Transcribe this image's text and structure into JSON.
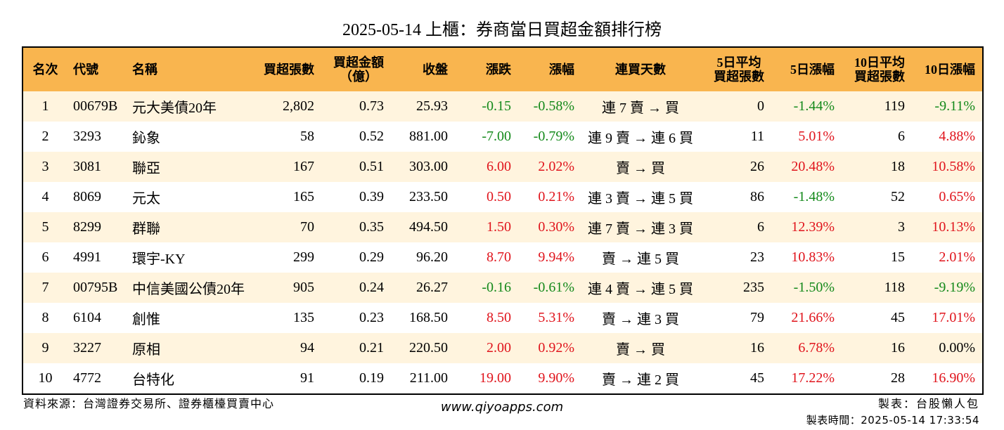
{
  "title": "2025-05-14 上櫃：券商當日買超金額排行榜",
  "colors": {
    "header_bg": "#F9B54F",
    "row_alt_bg": "#FFF4DE",
    "border": "#000000",
    "up": "#E0141C",
    "down": "#13891A"
  },
  "columns": [
    {
      "key": "rank",
      "label": [
        "名次"
      ]
    },
    {
      "key": "code",
      "label": [
        "代號"
      ]
    },
    {
      "key": "name",
      "label": [
        "名稱"
      ]
    },
    {
      "key": "net_buy_lots",
      "label": [
        "買超張數"
      ]
    },
    {
      "key": "net_buy_amount",
      "label": [
        "買超金額",
        "（億）"
      ]
    },
    {
      "key": "close",
      "label": [
        "收盤"
      ]
    },
    {
      "key": "change",
      "label": [
        "漲跌"
      ]
    },
    {
      "key": "change_pct",
      "label": [
        "漲幅"
      ]
    },
    {
      "key": "streak",
      "label": [
        "連買天數"
      ]
    },
    {
      "key": "avg5_lots",
      "label": [
        "5日平均",
        "買超張數"
      ]
    },
    {
      "key": "pct5",
      "label": [
        "5日漲幅"
      ]
    },
    {
      "key": "avg10_lots",
      "label": [
        "10日平均",
        "買超張數"
      ]
    },
    {
      "key": "pct10",
      "label": [
        "10日漲幅"
      ]
    }
  ],
  "rows": [
    {
      "rank": "1",
      "code": "00679B",
      "name": "元大美債20年",
      "net_buy_lots": "2,802",
      "net_buy_amount": "0.73",
      "close": "25.93",
      "change": {
        "text": "-0.15",
        "color": "#13891A"
      },
      "change_pct": {
        "text": "-0.58%",
        "color": "#13891A"
      },
      "streak": "連 7 賣 → 買",
      "avg5_lots": "0",
      "pct5": {
        "text": "-1.44%",
        "color": "#13891A"
      },
      "avg10_lots": "119",
      "pct10": {
        "text": "-9.11%",
        "color": "#13891A"
      }
    },
    {
      "rank": "2",
      "code": "3293",
      "name": "鈊象",
      "net_buy_lots": "58",
      "net_buy_amount": "0.52",
      "close": "881.00",
      "change": {
        "text": "-7.00",
        "color": "#13891A"
      },
      "change_pct": {
        "text": "-0.79%",
        "color": "#13891A"
      },
      "streak": "連 9 賣 → 連 6 買",
      "avg5_lots": "11",
      "pct5": {
        "text": "5.01%",
        "color": "#E0141C"
      },
      "avg10_lots": "6",
      "pct10": {
        "text": "4.88%",
        "color": "#E0141C"
      }
    },
    {
      "rank": "3",
      "code": "3081",
      "name": "聯亞",
      "net_buy_lots": "167",
      "net_buy_amount": "0.51",
      "close": "303.00",
      "change": {
        "text": "6.00",
        "color": "#E0141C"
      },
      "change_pct": {
        "text": "2.02%",
        "color": "#E0141C"
      },
      "streak": "賣 → 買",
      "avg5_lots": "26",
      "pct5": {
        "text": "20.48%",
        "color": "#E0141C"
      },
      "avg10_lots": "18",
      "pct10": {
        "text": "10.58%",
        "color": "#E0141C"
      }
    },
    {
      "rank": "4",
      "code": "8069",
      "name": "元太",
      "net_buy_lots": "165",
      "net_buy_amount": "0.39",
      "close": "233.50",
      "change": {
        "text": "0.50",
        "color": "#E0141C"
      },
      "change_pct": {
        "text": "0.21%",
        "color": "#E0141C"
      },
      "streak": "連 3 賣 → 連 5 買",
      "avg5_lots": "86",
      "pct5": {
        "text": "-1.48%",
        "color": "#13891A"
      },
      "avg10_lots": "52",
      "pct10": {
        "text": "0.65%",
        "color": "#E0141C"
      }
    },
    {
      "rank": "5",
      "code": "8299",
      "name": "群聯",
      "net_buy_lots": "70",
      "net_buy_amount": "0.35",
      "close": "494.50",
      "change": {
        "text": "1.50",
        "color": "#E0141C"
      },
      "change_pct": {
        "text": "0.30%",
        "color": "#E0141C"
      },
      "streak": "連 7 賣 → 連 3 買",
      "avg5_lots": "6",
      "pct5": {
        "text": "12.39%",
        "color": "#E0141C"
      },
      "avg10_lots": "3",
      "pct10": {
        "text": "10.13%",
        "color": "#E0141C"
      }
    },
    {
      "rank": "6",
      "code": "4991",
      "name": "環宇-KY",
      "net_buy_lots": "299",
      "net_buy_amount": "0.29",
      "close": "96.20",
      "change": {
        "text": "8.70",
        "color": "#E0141C"
      },
      "change_pct": {
        "text": "9.94%",
        "color": "#E0141C"
      },
      "streak": "賣 → 連 5 買",
      "avg5_lots": "23",
      "pct5": {
        "text": "10.83%",
        "color": "#E0141C"
      },
      "avg10_lots": "15",
      "pct10": {
        "text": "2.01%",
        "color": "#E0141C"
      }
    },
    {
      "rank": "7",
      "code": "00795B",
      "name": "中信美國公債20年",
      "net_buy_lots": "905",
      "net_buy_amount": "0.24",
      "close": "26.27",
      "change": {
        "text": "-0.16",
        "color": "#13891A"
      },
      "change_pct": {
        "text": "-0.61%",
        "color": "#13891A"
      },
      "streak": "連 4 賣 → 連 5 買",
      "avg5_lots": "235",
      "pct5": {
        "text": "-1.50%",
        "color": "#13891A"
      },
      "avg10_lots": "118",
      "pct10": {
        "text": "-9.19%",
        "color": "#13891A"
      }
    },
    {
      "rank": "8",
      "code": "6104",
      "name": "創惟",
      "net_buy_lots": "135",
      "net_buy_amount": "0.23",
      "close": "168.50",
      "change": {
        "text": "8.50",
        "color": "#E0141C"
      },
      "change_pct": {
        "text": "5.31%",
        "color": "#E0141C"
      },
      "streak": "賣 → 連 3 買",
      "avg5_lots": "79",
      "pct5": {
        "text": "21.66%",
        "color": "#E0141C"
      },
      "avg10_lots": "45",
      "pct10": {
        "text": "17.01%",
        "color": "#E0141C"
      }
    },
    {
      "rank": "9",
      "code": "3227",
      "name": "原相",
      "net_buy_lots": "94",
      "net_buy_amount": "0.21",
      "close": "220.50",
      "change": {
        "text": "2.00",
        "color": "#E0141C"
      },
      "change_pct": {
        "text": "0.92%",
        "color": "#E0141C"
      },
      "streak": "賣 → 買",
      "avg5_lots": "16",
      "pct5": {
        "text": "6.78%",
        "color": "#E0141C"
      },
      "avg10_lots": "16",
      "pct10": {
        "text": "0.00%",
        "color": "#000000"
      }
    },
    {
      "rank": "10",
      "code": "4772",
      "name": "台特化",
      "net_buy_lots": "91",
      "net_buy_amount": "0.19",
      "close": "211.00",
      "change": {
        "text": "19.00",
        "color": "#E0141C"
      },
      "change_pct": {
        "text": "9.90%",
        "color": "#E0141C"
      },
      "streak": "賣 → 連 2 買",
      "avg5_lots": "45",
      "pct5": {
        "text": "17.22%",
        "color": "#E0141C"
      },
      "avg10_lots": "28",
      "pct10": {
        "text": "16.90%",
        "color": "#E0141C"
      }
    }
  ],
  "footer": {
    "source": "資料來源：台灣證券交易所、證券櫃檯買賣中心",
    "website": "www.qiyoapps.com",
    "made_by": "製表：台股懶人包",
    "made_at": "製表時間：2025-05-14 17:33:54"
  }
}
